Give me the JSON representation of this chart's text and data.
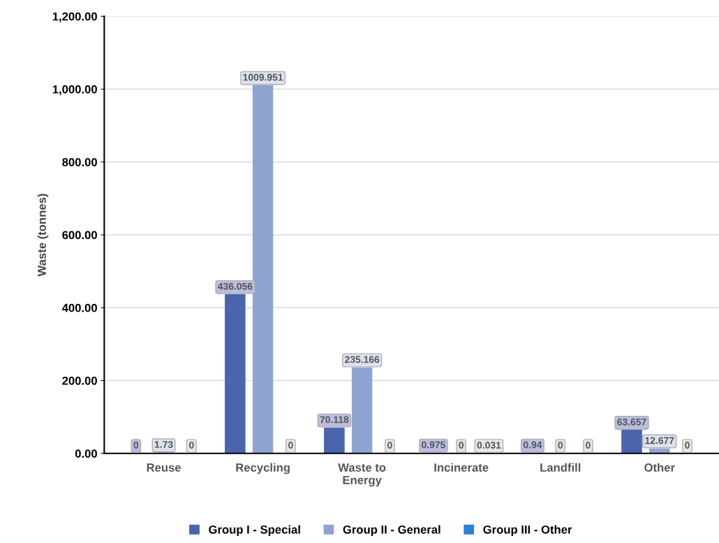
{
  "chart_data": {
    "type": "bar",
    "ylabel": "Waste (tonnes)",
    "categories": [
      "Reuse",
      "Recycling",
      "Waste to\nEnergy",
      "Incinerate",
      "Landfill",
      "Other"
    ],
    "series": [
      {
        "name": "Group I - Special",
        "color": "#4a65ae",
        "values": [
          0,
          436.056,
          70.118,
          0.975,
          0.94,
          63.657
        ]
      },
      {
        "name": "Group II - General",
        "color": "#8fa3d2",
        "values": [
          1.73,
          1009.951,
          235.166,
          0,
          0,
          12.677
        ]
      },
      {
        "name": "Group III - Other",
        "color": "#2e7fd6",
        "values": [
          0,
          0,
          0,
          0.031,
          0,
          0
        ]
      }
    ],
    "ylim": [
      0,
      1200
    ],
    "yticks": [
      {
        "value": 0,
        "label": "0.00"
      },
      {
        "value": 200,
        "label": "200.00"
      },
      {
        "value": 400,
        "label": "400.00"
      },
      {
        "value": 600,
        "label": "600.00"
      },
      {
        "value": 800,
        "label": "800.00"
      },
      {
        "value": 1000,
        "label": "1,000.00"
      },
      {
        "value": 1200,
        "label": "1,200.00"
      }
    ],
    "grid": "y",
    "legend": "bottom",
    "data_labels": true
  }
}
